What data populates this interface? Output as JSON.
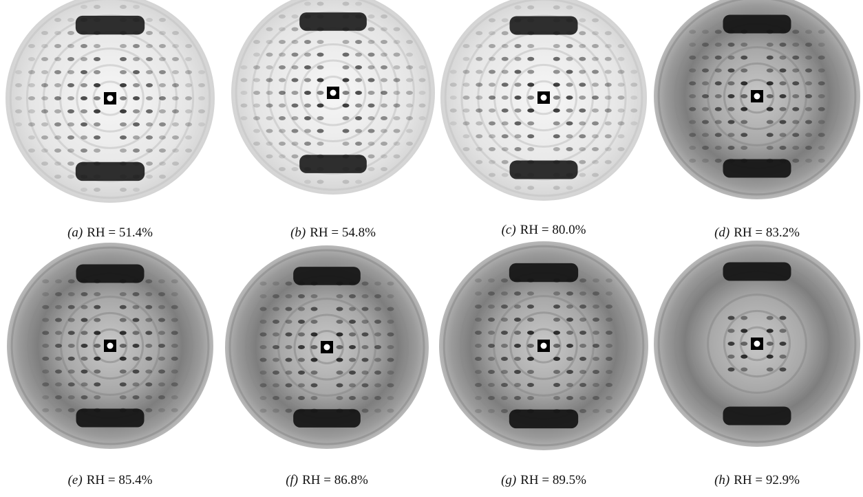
{
  "panels": [
    {
      "label": "(a)",
      "caption": "RH = 51.4%"
    },
    {
      "label": "(b)",
      "caption": "RH = 54.8%"
    },
    {
      "label": "(c)",
      "caption": "RH = 80.0%"
    },
    {
      "label": "(d)",
      "caption": "RH = 83.2%"
    },
    {
      "label": "(e)",
      "caption": "RH = 85.4%"
    },
    {
      "label": "(f)",
      "caption": "RH = 86.8%"
    },
    {
      "label": "(g)",
      "caption": "RH = 89.5%"
    },
    {
      "label": "(h)",
      "caption": "RH = 92.9%"
    }
  ]
}
